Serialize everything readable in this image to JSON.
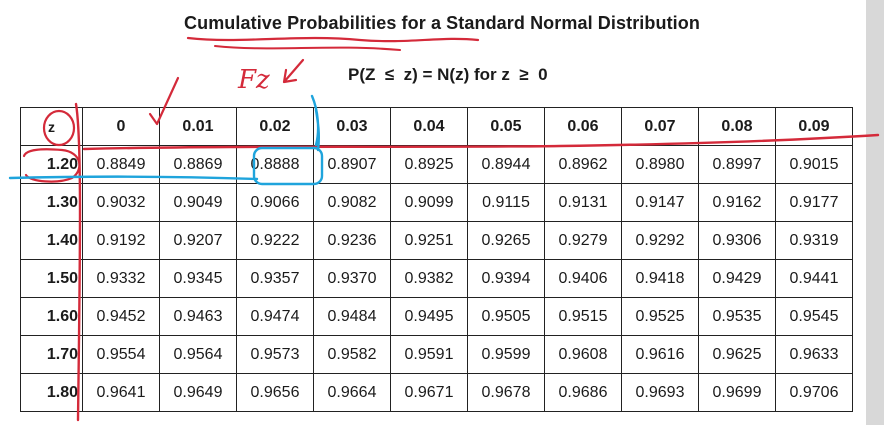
{
  "title": "Cumulative Probabilities for a Standard Normal Distribution",
  "subtitle": "P(Z  ≤  z) = N(z) for z  ≥  0",
  "annotation": "Fz",
  "table": {
    "corner_label": "z",
    "columns": [
      "0",
      "0.01",
      "0.02",
      "0.03",
      "0.04",
      "0.05",
      "0.06",
      "0.07",
      "0.08",
      "0.09"
    ],
    "rows": [
      {
        "z": "1.20",
        "values": [
          "0.8849",
          "0.8869",
          "0.8888",
          "0.8907",
          "0.8925",
          "0.8944",
          "0.8962",
          "0.8980",
          "0.8997",
          "0.9015"
        ]
      },
      {
        "z": "1.30",
        "values": [
          "0.9032",
          "0.9049",
          "0.9066",
          "0.9082",
          "0.9099",
          "0.9115",
          "0.9131",
          "0.9147",
          "0.9162",
          "0.9177"
        ]
      },
      {
        "z": "1.40",
        "values": [
          "0.9192",
          "0.9207",
          "0.9222",
          "0.9236",
          "0.9251",
          "0.9265",
          "0.9279",
          "0.9292",
          "0.9306",
          "0.9319"
        ]
      },
      {
        "z": "1.50",
        "values": [
          "0.9332",
          "0.9345",
          "0.9357",
          "0.9370",
          "0.9382",
          "0.9394",
          "0.9406",
          "0.9418",
          "0.9429",
          "0.9441"
        ]
      },
      {
        "z": "1.60",
        "values": [
          "0.9452",
          "0.9463",
          "0.9474",
          "0.9484",
          "0.9495",
          "0.9505",
          "0.9515",
          "0.9525",
          "0.9535",
          "0.9545"
        ]
      },
      {
        "z": "1.70",
        "values": [
          "0.9554",
          "0.9564",
          "0.9573",
          "0.9582",
          "0.9591",
          "0.9599",
          "0.9608",
          "0.9616",
          "0.9625",
          "0.9633"
        ]
      },
      {
        "z": "1.80",
        "values": [
          "0.9641",
          "0.9649",
          "0.9656",
          "0.9664",
          "0.9671",
          "0.9678",
          "0.9686",
          "0.9693",
          "0.9699",
          "0.9706"
        ]
      }
    ]
  },
  "colors": {
    "ink_red": "#d42a3a",
    "ink_blue": "#1fa4dc",
    "text": "#1b1b1b",
    "grid": "#222222"
  }
}
